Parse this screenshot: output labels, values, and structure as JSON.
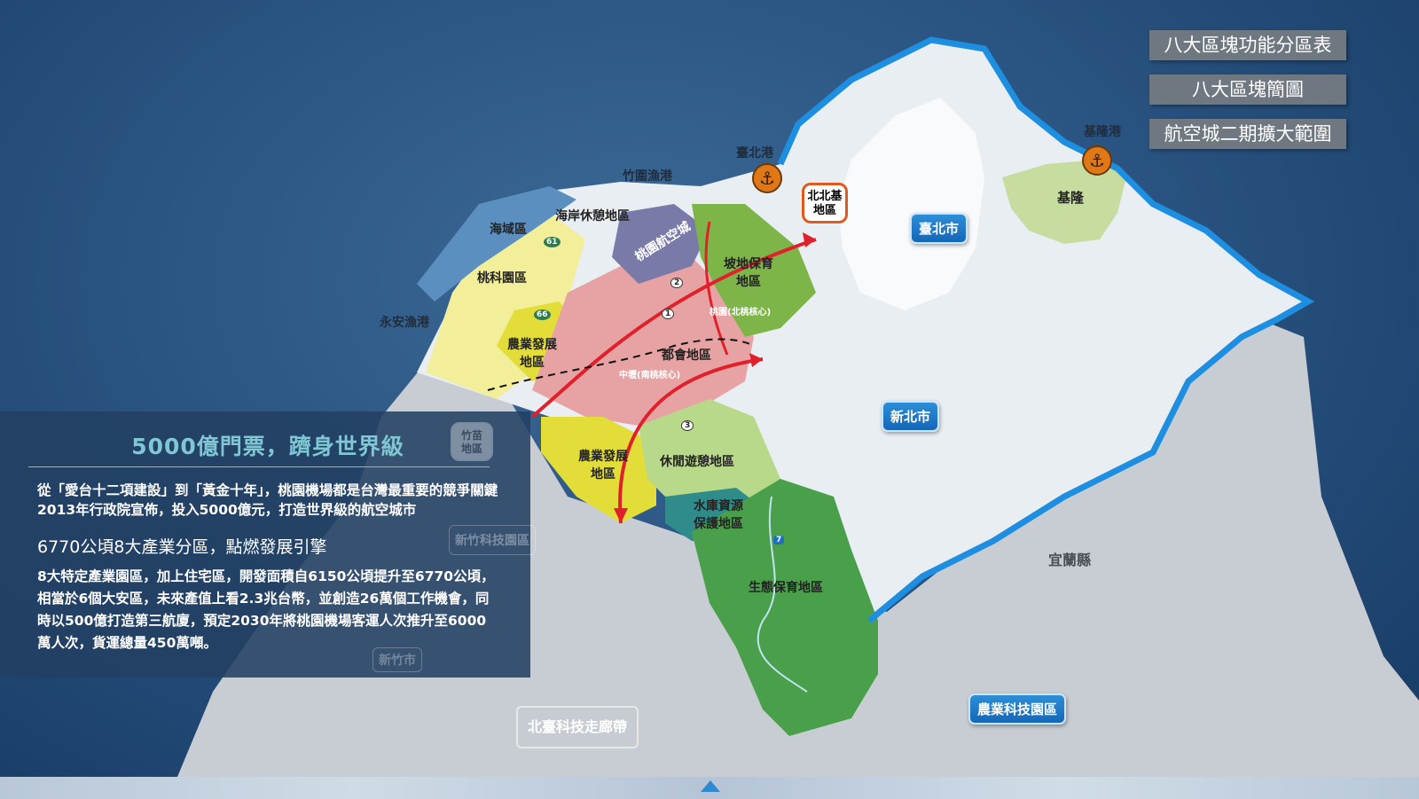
{
  "menu": {
    "items": [
      "八大區塊功能分區表",
      "八大區塊簡圖",
      "航空城二期擴大範圍"
    ]
  },
  "map": {
    "ports": {
      "taipei_port": "臺北港",
      "keelung_port": "基隆港",
      "zhuwei_port": "竹圍漁港",
      "yongan_port": "永安漁港"
    },
    "cities": {
      "taipei": "臺北市",
      "new_taipei": "新北市",
      "keelung": "基隆",
      "yilan": "宜蘭縣",
      "hsinchu_city": "新竹市"
    },
    "zones": {
      "coastal": "海岸休憩地區",
      "sea_area": "海域區",
      "aerotropolis": "桃園航空城",
      "tech_park": "桃科園區",
      "agri_north": "農業發展\n地區",
      "slope": "坡地保育\n地區",
      "urban": "都會地區",
      "agri_south": "農業發展\n地區",
      "leisure": "休閒遊憩地區",
      "reservoir": "水庫資源\n保護地區",
      "ecology": "生態保育地區"
    },
    "hex": {
      "north": "北北基\n地區",
      "south": "竹苗\n地區"
    },
    "centers": {
      "taoyuan": "桃園(北桃核心)",
      "zhongli": "中壢(南桃核心)"
    },
    "highways": [
      "61",
      "66",
      "1",
      "2",
      "3",
      "7"
    ],
    "badges": {
      "hsinchu_park": "新竹科技園區",
      "agri_tech_park": "農業科技園區",
      "corridor": "北臺科技走廊帶"
    }
  },
  "info": {
    "title": "5000億門票，躋身世界級",
    "para1": "從「愛台十二項建設」到「黃金十年」，桃園機場都是台灣最重要的競爭關鍵2013年行政院宣佈，投入5000億元，打造世界級的航空城市",
    "subtitle": "6770公頃8大產業分區，點燃發展引擎",
    "para2": "8大特定產業園區，加上住宅區，開發面積自6150公頃提升至6770公頃，相當於6個大安區，未來產值上看2.3兆台幣，並創造26萬個工作機會，同時以500億打造第三航廈，預定2030年將桃園機場客運人次推升至6000萬人次，貨運總量450萬噸。"
  },
  "colors": {
    "ocean": "#2a5482",
    "coast": "#1e8fe0",
    "northern_taiwan": "#e9eef3",
    "taipei_area": "#f7f9fb",
    "keelung": "#c7dda0",
    "urban": "#e7a3a3",
    "agri": "#e8e070",
    "slope": "#7db548",
    "ecology": "#4aa04a",
    "leisure": "#b9d98a",
    "aerotropolis": "#7a7aa8",
    "arrows": "#e0202a",
    "panel": "#224062",
    "title": "#7fc7d4"
  }
}
